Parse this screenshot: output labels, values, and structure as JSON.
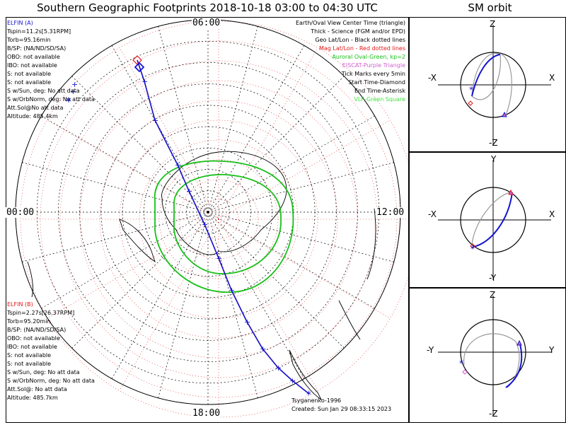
{
  "main_title": "Southern Geographic Footprints 2018-10-18 03:00 to 04:30 UTC",
  "sm_title": "SM orbit",
  "hours": {
    "top": "06:00",
    "left": "00:00",
    "right": "12:00",
    "bottom": "18:00"
  },
  "elfin_a": {
    "name": "ELFIN (A)",
    "lines": [
      "Tspin=11.2s[5.31RPM]",
      "Torb=95.16min",
      "B/SP: (NA/ND/SD/SA)",
      "OBO: not available",
      "IBO: not available",
      "S: not available",
      "S: not available",
      "S w/Sun, deg: No att data",
      "S w/OrbNorm, deg: No att data",
      "Att.Sol@No att data",
      "Altitude: 485.4km"
    ]
  },
  "elfin_b": {
    "name": "ELFIN (B)",
    "lines": [
      "Tspin=2.27s[26.37RPM]",
      "Torb=95.20min",
      "B/SP: (NA/ND/SD/SA)",
      "OBO: not available",
      "IBO: not available",
      "S: not available",
      "S: not available",
      "S w/Sun, deg: No att data",
      "S w/OrbNorm, deg: No att data",
      "Att.Sol@: No att data",
      "Altitude: 485.7km"
    ]
  },
  "legend": [
    {
      "text": "Earth/Oval View Center Time (triangle)",
      "color": "#000000"
    },
    {
      "text": "Thick - Science (FGM and/or EPD)",
      "color": "#000000"
    },
    {
      "text": "Geo Lat/Lon - Black dotted lines",
      "color": "#000000"
    },
    {
      "text": "Mag Lat/Lon - Red dotted lines",
      "color": "#e01818"
    },
    {
      "text": "Auroral Oval-Green, kp=2",
      "color": "#18c018"
    },
    {
      "text": "EISCAT-Purple Triangle",
      "color": "#d060d0"
    },
    {
      "text": "Tick Marks every 5min",
      "color": "#000000"
    },
    {
      "text": "Start Time-Diamond",
      "color": "#000000"
    },
    {
      "text": "End Time-Asterisk",
      "color": "#000000"
    },
    {
      "text": "VLF-Green Square",
      "color": "#40e040"
    }
  ],
  "credits": {
    "model": "Tsyganenko-1996",
    "created": "Created: Sun Jan 29 08:33:15 2023"
  },
  "sm_panels": [
    {
      "top": "Z",
      "bottom": "-Z",
      "left": "-X",
      "right": "X"
    },
    {
      "top": "Y",
      "bottom": "-Y",
      "left": "-X",
      "right": "X"
    },
    {
      "top": "Z",
      "bottom": "-Z",
      "left": "-Y",
      "right": "Y"
    }
  ],
  "colors": {
    "elfin_a": "#1515d0",
    "elfin_b": "#e01818",
    "oval": "#18c018",
    "mag_grid": "#e01818",
    "geo_grid": "#000000"
  },
  "chart_data": {
    "type": "polar map",
    "projection": "south polar stereographic",
    "hour_labels": [
      "00:00",
      "06:00",
      "12:00",
      "18:00"
    ],
    "tick_interval_min": 5,
    "kp": 2,
    "time_range": [
      "2018-10-18 03:00",
      "2018-10-18 04:30"
    ]
  }
}
